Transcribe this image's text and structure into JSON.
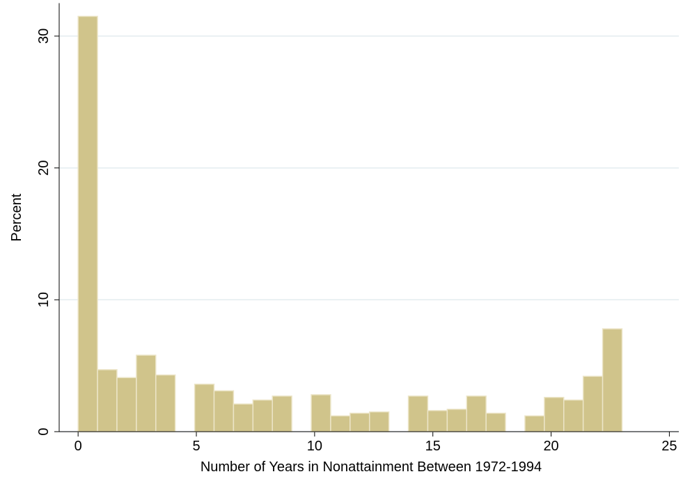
{
  "chart_data": {
    "type": "histogram",
    "x_label": "Number of Years in Nonattainment Between 1972-1994",
    "y_label": "Percent",
    "bins": [
      0,
      0.8214,
      1.6429,
      2.4643,
      3.2857,
      4.1071,
      4.9286,
      5.75,
      6.5714,
      7.3929,
      8.2143,
      9.0357,
      9.8571,
      10.6786,
      11.5,
      12.3214,
      13.1429,
      13.9643,
      14.7857,
      15.6071,
      16.4286,
      17.25,
      18.0714,
      18.8929,
      19.7143,
      20.5357,
      21.3571,
      22.1786,
      23
    ],
    "values": [
      31.5,
      4.7,
      4.1,
      5.8,
      4.3,
      0,
      3.6,
      3.1,
      2.1,
      2.4,
      2.7,
      0,
      2.8,
      1.2,
      1.4,
      1.5,
      0,
      2.7,
      1.6,
      1.7,
      2.7,
      1.4,
      0,
      1.2,
      2.6,
      2.4,
      4.2,
      7.8
    ],
    "color": "#d0c48b",
    "xlim": [
      -0.8,
      25.4
    ],
    "xticks": [
      0,
      5,
      10,
      15,
      20,
      25
    ],
    "ylim": [
      0,
      32.5
    ],
    "yticks": [
      0,
      10,
      20,
      30
    ],
    "grid": true
  }
}
